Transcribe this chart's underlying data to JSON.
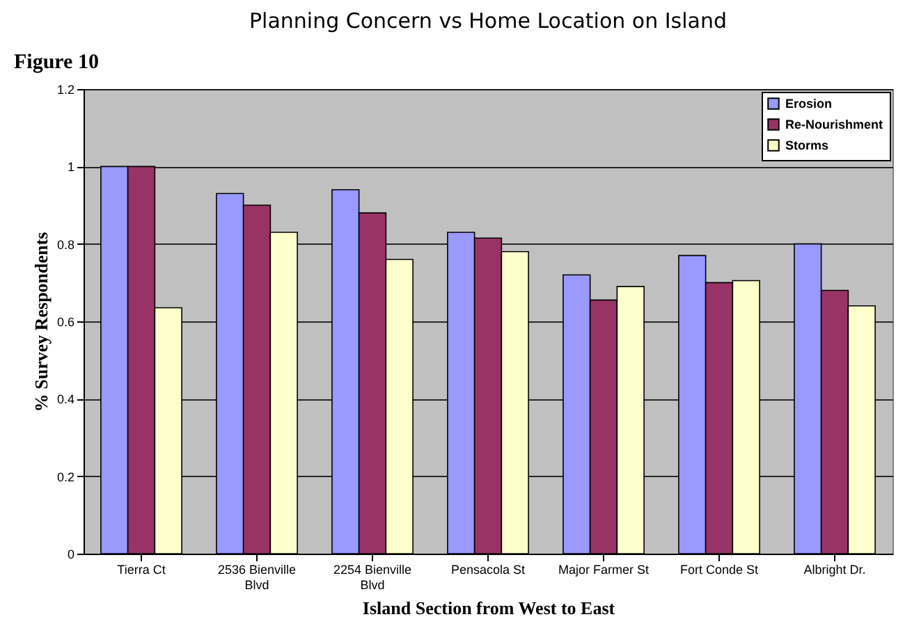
{
  "chart_data": {
    "type": "bar",
    "title": "Planning Concern vs Home Location on Island",
    "annotations": [
      "Figure 10"
    ],
    "xlabel": "Island Section from West to East",
    "ylabel": "% Survey Respondents",
    "categories": [
      "Tierra Ct",
      "2536 Bienville Blvd",
      "2254 Bienville Blvd",
      "Pensacola St",
      "Major Farmer St",
      "Fort Conde St",
      "Albright Dr."
    ],
    "series": [
      {
        "name": "Erosion",
        "color": "#9999ff",
        "values": [
          1.0,
          0.93,
          0.94,
          0.83,
          0.72,
          0.77,
          0.8
        ]
      },
      {
        "name": "Re-Nourishment",
        "color": "#993366",
        "values": [
          1.0,
          0.9,
          0.88,
          0.815,
          0.655,
          0.7,
          0.68
        ]
      },
      {
        "name": "Storms",
        "color": "#ffffcc",
        "values": [
          0.635,
          0.83,
          0.76,
          0.78,
          0.69,
          0.705,
          0.64
        ]
      }
    ],
    "ylim": [
      0,
      1.2
    ],
    "yticks": [
      0,
      0.2,
      0.4,
      0.6,
      0.8,
      1,
      1.2
    ],
    "grid": "y",
    "legend": "top right"
  }
}
